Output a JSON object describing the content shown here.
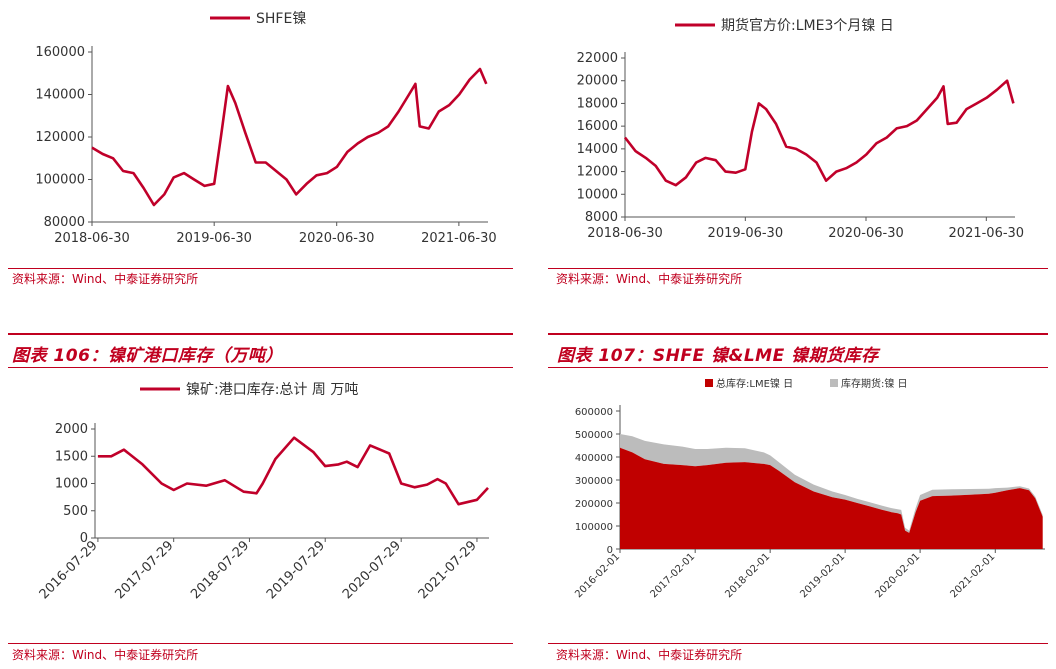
{
  "source_note": "资料来源：Wind、中泰证券研究所",
  "figures": [
    {
      "title": ""
    },
    {
      "title": ""
    },
    {
      "title": "图表 106：镍矿港口库存（万吨）"
    },
    {
      "title": "图表 107：SHFE 镍&LME 镍期货库存"
    }
  ],
  "chart_data": [
    {
      "type": "line",
      "title": "",
      "legend_position": "top",
      "series": [
        {
          "name": "SHFE镍",
          "color": "#c0002a",
          "x": [
            "2018-06-30",
            "2018-08-01",
            "2018-09-01",
            "2018-10-01",
            "2018-11-01",
            "2018-12-01",
            "2019-01-01",
            "2019-02-01",
            "2019-03-01",
            "2019-04-01",
            "2019-05-01",
            "2019-06-01",
            "2019-06-30",
            "2019-07-20",
            "2019-08-10",
            "2019-09-01",
            "2019-10-01",
            "2019-11-01",
            "2019-12-01",
            "2020-01-01",
            "2020-02-01",
            "2020-03-01",
            "2020-04-01",
            "2020-05-01",
            "2020-06-01",
            "2020-07-01",
            "2020-08-01",
            "2020-09-01",
            "2020-10-01",
            "2020-11-01",
            "2020-12-01",
            "2021-01-01",
            "2021-02-01",
            "2021-02-20",
            "2021-03-05",
            "2021-04-01",
            "2021-05-01",
            "2021-06-01",
            "2021-07-01",
            "2021-08-01",
            "2021-09-01",
            "2021-09-20"
          ],
          "values": [
            115000,
            112000,
            110000,
            104000,
            103000,
            96000,
            88000,
            93000,
            101000,
            103000,
            100000,
            97000,
            98000,
            120000,
            144000,
            136000,
            122000,
            108000,
            108000,
            104000,
            100000,
            93000,
            98000,
            102000,
            103000,
            106000,
            113000,
            117000,
            120000,
            122000,
            125000,
            132000,
            140000,
            145000,
            125000,
            124000,
            132000,
            135000,
            140000,
            147000,
            152000,
            145000
          ]
        }
      ],
      "ylim": [
        80000,
        160000
      ],
      "yticks": [
        80000,
        100000,
        120000,
        140000,
        160000
      ],
      "xticks": [
        "2018-06-30",
        "2019-06-30",
        "2020-06-30",
        "2021-06-30"
      ],
      "xlim": [
        "2018-06-30",
        "2021-09-25"
      ],
      "xlabel": "",
      "ylabel": ""
    },
    {
      "type": "line",
      "title": "",
      "legend_position": "top",
      "series": [
        {
          "name": "期货官方价:LME3个月镍 日",
          "color": "#c0002a",
          "x": [
            "2018-06-30",
            "2018-08-01",
            "2018-09-01",
            "2018-10-01",
            "2018-11-01",
            "2018-12-01",
            "2019-01-01",
            "2019-02-01",
            "2019-03-01",
            "2019-04-01",
            "2019-05-01",
            "2019-06-01",
            "2019-06-30",
            "2019-07-20",
            "2019-08-10",
            "2019-09-01",
            "2019-10-01",
            "2019-11-01",
            "2019-12-01",
            "2020-01-01",
            "2020-02-01",
            "2020-03-01",
            "2020-04-01",
            "2020-05-01",
            "2020-06-01",
            "2020-07-01",
            "2020-08-01",
            "2020-09-01",
            "2020-10-01",
            "2020-11-01",
            "2020-12-01",
            "2021-01-01",
            "2021-02-01",
            "2021-02-20",
            "2021-03-05",
            "2021-04-01",
            "2021-05-01",
            "2021-06-01",
            "2021-07-01",
            "2021-08-01",
            "2021-09-01",
            "2021-09-20"
          ],
          "values": [
            15000,
            13800,
            13200,
            12500,
            11200,
            10800,
            11500,
            12800,
            13200,
            13000,
            12000,
            11900,
            12200,
            15500,
            18000,
            17500,
            16200,
            14200,
            14000,
            13500,
            12800,
            11200,
            12000,
            12300,
            12800,
            13500,
            14500,
            15000,
            15800,
            16000,
            16500,
            17500,
            18500,
            19500,
            16200,
            16300,
            17500,
            18000,
            18500,
            19200,
            20000,
            18000
          ]
        }
      ],
      "ylim": [
        8000,
        22000
      ],
      "yticks": [
        8000,
        10000,
        12000,
        14000,
        16000,
        18000,
        20000,
        22000
      ],
      "xticks": [
        "2018-06-30",
        "2019-06-30",
        "2020-06-30",
        "2021-06-30"
      ],
      "xlim": [
        "2018-06-30",
        "2021-09-25"
      ],
      "xlabel": "",
      "ylabel": ""
    },
    {
      "type": "line",
      "title": "",
      "legend_position": "top",
      "series": [
        {
          "name": "镍矿:港口库存:总计 周 万吨",
          "color": "#c0002a",
          "x": [
            "2016-07-29",
            "2016-10-01",
            "2016-12-01",
            "2017-03-01",
            "2017-06-01",
            "2017-07-29",
            "2017-10-01",
            "2018-01-01",
            "2018-04-01",
            "2018-07-01",
            "2018-09-01",
            "2018-10-01",
            "2018-12-01",
            "2019-03-01",
            "2019-06-01",
            "2019-07-29",
            "2019-10-01",
            "2019-11-10",
            "2020-01-01",
            "2020-03-01",
            "2020-06-01",
            "2020-07-29",
            "2020-10-01",
            "2020-12-01",
            "2021-01-20",
            "2021-03-01",
            "2021-05-01",
            "2021-07-29",
            "2021-09-20"
          ],
          "values": [
            1500,
            1500,
            1620,
            1350,
            1000,
            880,
            1000,
            960,
            1060,
            850,
            820,
            1000,
            1450,
            1840,
            1580,
            1320,
            1350,
            1400,
            1300,
            1700,
            1550,
            1000,
            930,
            980,
            1080,
            1000,
            620,
            700,
            920
          ]
        }
      ],
      "ylim": [
        0,
        2000
      ],
      "yticks": [
        0,
        500,
        1000,
        1500,
        2000
      ],
      "xticks": [
        "2016-07-29",
        "2017-07-29",
        "2018-07-29",
        "2019-07-29",
        "2020-07-29",
        "2021-07-29"
      ],
      "xlim": [
        "2016-07-15",
        "2021-09-25"
      ],
      "xlabel": "",
      "ylabel": ""
    },
    {
      "type": "area",
      "title": "",
      "legend_position": "top",
      "x": [
        "2016-02-01",
        "2016-04-01",
        "2016-06-01",
        "2016-09-01",
        "2016-12-01",
        "2017-02-01",
        "2017-04-01",
        "2017-07-01",
        "2017-10-01",
        "2018-01-01",
        "2018-02-01",
        "2018-03-15",
        "2018-06-01",
        "2018-09-01",
        "2018-12-01",
        "2019-02-01",
        "2019-04-01",
        "2019-06-01",
        "2019-08-01",
        "2019-09-15",
        "2019-10-15",
        "2019-11-01",
        "2019-11-20",
        "2019-12-10",
        "2020-01-10",
        "2020-02-01",
        "2020-04-01",
        "2020-07-01",
        "2020-10-01",
        "2021-01-01",
        "2021-02-01",
        "2021-04-01",
        "2021-06-01",
        "2021-07-15",
        "2021-08-15",
        "2021-09-20"
      ],
      "series": [
        {
          "name": "总库存:LME镍 日",
          "color": "#c00000",
          "values": [
            440000,
            420000,
            390000,
            370000,
            365000,
            360000,
            365000,
            375000,
            378000,
            370000,
            365000,
            340000,
            290000,
            250000,
            225000,
            215000,
            200000,
            185000,
            170000,
            160000,
            155000,
            150000,
            80000,
            70000,
            160000,
            210000,
            230000,
            232000,
            236000,
            240000,
            245000,
            255000,
            265000,
            255000,
            220000,
            140000
          ]
        },
        {
          "name": "库存期货:镍 日",
          "color": "#bcbcbc",
          "values": [
            60000,
            70000,
            80000,
            85000,
            80000,
            75000,
            70000,
            65000,
            60000,
            50000,
            42000,
            38000,
            33000,
            30000,
            25000,
            20000,
            18000,
            18000,
            18000,
            18000,
            18000,
            20000,
            12000,
            10000,
            18000,
            25000,
            28000,
            28000,
            25000,
            22000,
            20000,
            12000,
            8000,
            8000,
            8000,
            8000
          ]
        }
      ],
      "ylim": [
        0,
        600000
      ],
      "yticks": [
        0,
        100000,
        200000,
        300000,
        400000,
        500000,
        600000
      ],
      "xticks": [
        "2016-02-01",
        "2017-02-01",
        "2018-02-01",
        "2019-02-01",
        "2020-02-01",
        "2021-02-01"
      ],
      "xlim": [
        "2016-02-01",
        "2021-10-01"
      ],
      "xlabel": "",
      "ylabel": ""
    }
  ]
}
